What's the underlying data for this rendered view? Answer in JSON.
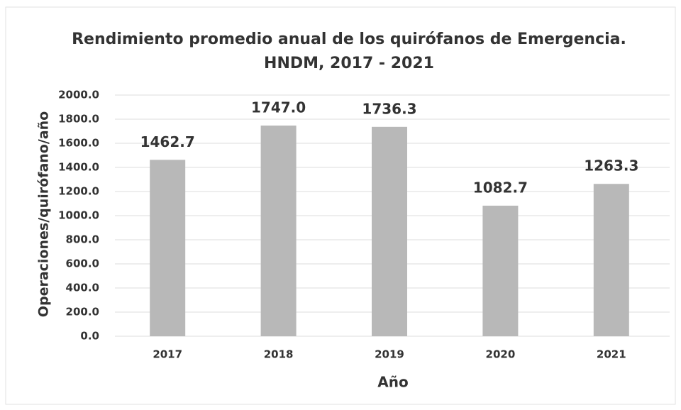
{
  "chart_data": {
    "type": "bar",
    "title": "Rendimiento promedio anual de los quirófanos de Emergencia.",
    "subtitle": "HNDM, 2017 - 2021",
    "x_label": "Año",
    "y_label": "Operaciones/quirófano/año",
    "categories": [
      "2017",
      "2018",
      "2019",
      "2020",
      "2021"
    ],
    "values": [
      1462.7,
      1747,
      1736.3,
      1082.7,
      1263.3
    ],
    "value_labels": [
      "1462.7",
      "1747.0",
      "1736.3",
      "1082.7",
      "1263.3"
    ],
    "color": "#b8b8b8",
    "ylim": [
      0,
      2000
    ],
    "yticks": [
      {
        "value": 0,
        "label": "0.0"
      },
      {
        "value": 200,
        "label": "200.0"
      },
      {
        "value": 400,
        "label": "400.0"
      },
      {
        "value": 600,
        "label": "600.0"
      },
      {
        "value": 800,
        "label": "800.0"
      },
      {
        "value": 1000,
        "label": "1000.0"
      },
      {
        "value": 1200,
        "label": "1200.0"
      },
      {
        "value": 1400,
        "label": "1400.0"
      },
      {
        "value": 1600,
        "label": "1600.0"
      },
      {
        "value": 1800,
        "label": "1800.0"
      },
      {
        "value": 2000,
        "label": "2000.0"
      }
    ],
    "grid": true
  }
}
